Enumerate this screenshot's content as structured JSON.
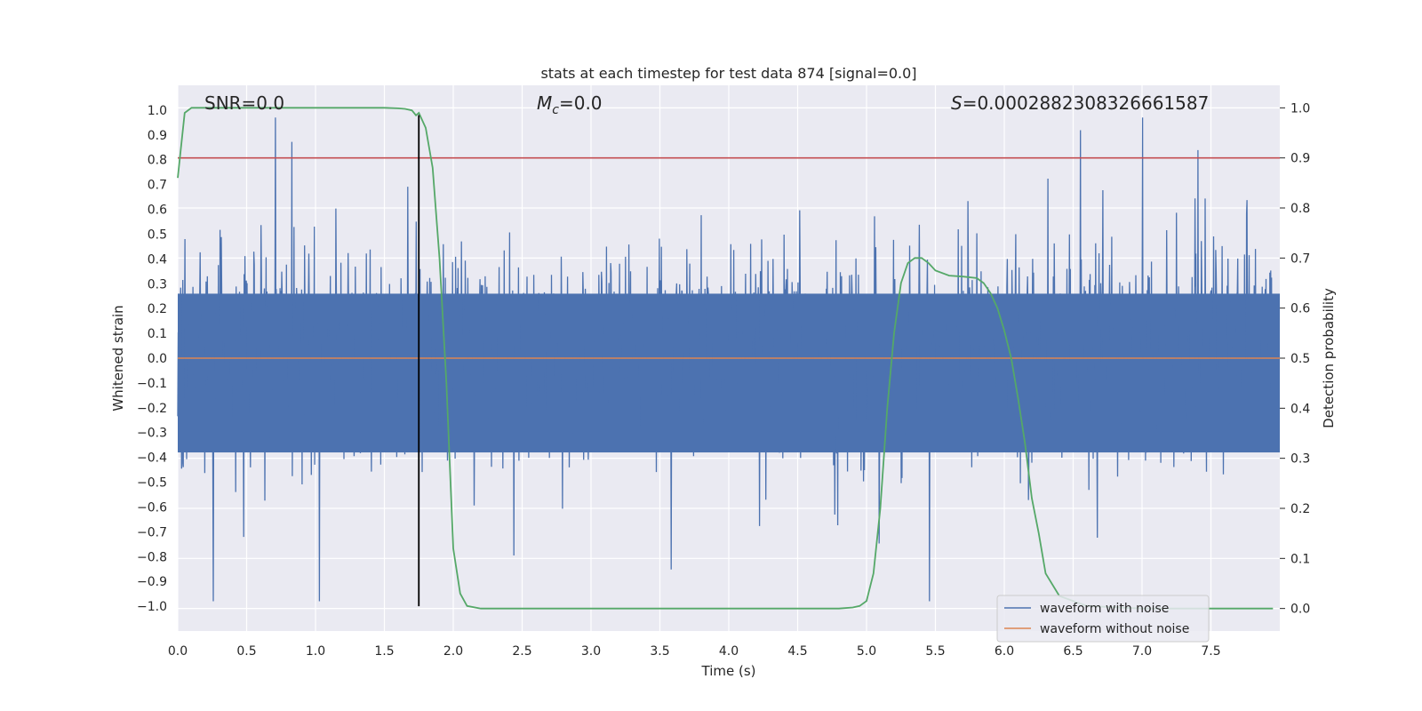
{
  "chart_data": {
    "type": "line",
    "title": "stats at each timestep for test data 874 [signal=0.0]",
    "xlabel": "Time (s)",
    "ylabel": "Whitened strain",
    "ylabel_right": "Detection probability",
    "xlim": [
      0.0,
      8.0
    ],
    "ylim": [
      -1.1,
      1.1
    ],
    "ylim_right": [
      -0.045,
      1.045
    ],
    "x_ticks": [
      "0.0",
      "0.5",
      "1.0",
      "1.5",
      "2.0",
      "2.5",
      "3.0",
      "3.5",
      "4.0",
      "4.5",
      "5.0",
      "5.5",
      "6.0",
      "6.5",
      "7.0",
      "7.5"
    ],
    "y_ticks": [
      "1.0",
      "0.9",
      "0.8",
      "0.7",
      "0.6",
      "0.5",
      "0.4",
      "0.3",
      "0.2",
      "0.1",
      "0.0",
      "−0.1",
      "−0.2",
      "−0.3",
      "−0.4",
      "−0.5",
      "−0.6",
      "−0.7",
      "−0.8",
      "−0.9",
      "−1.0"
    ],
    "y_right_ticks": [
      "1.0",
      "0.9",
      "0.8",
      "0.7",
      "0.6",
      "0.5",
      "0.4",
      "0.3",
      "0.2",
      "0.1",
      "0.0"
    ],
    "annotations": {
      "snr": "SNR=0.0",
      "mc_symbol": "M",
      "mc_subscript": "c",
      "mc_value": "=0.0",
      "s_symbol": "S",
      "s_value": "=0.0002882308326661587"
    },
    "series": [
      {
        "name": "waveform with noise",
        "color": "#4c72b0",
        "axis": "left",
        "description_range": [
          -1.0,
          0.97
        ]
      },
      {
        "name": "waveform without noise",
        "color": "#dd8452",
        "axis": "left",
        "values_constant": 0.0
      },
      {
        "name": "detection probability",
        "color": "#55a868",
        "axis": "right",
        "x": [
          0.0,
          0.05,
          0.1,
          0.15,
          0.3,
          0.6,
          1.0,
          1.3,
          1.5,
          1.6,
          1.65,
          1.7,
          1.73,
          1.75,
          1.8,
          1.85,
          1.9,
          1.95,
          2.0,
          2.05,
          2.1,
          2.2,
          2.5,
          3.0,
          3.5,
          4.0,
          4.5,
          4.8,
          4.9,
          4.95,
          5.0,
          5.05,
          5.1,
          5.15,
          5.2,
          5.25,
          5.3,
          5.35,
          5.4,
          5.45,
          5.5,
          5.6,
          5.7,
          5.8,
          5.85,
          5.9,
          5.95,
          6.0,
          6.05,
          6.1,
          6.15,
          6.2,
          6.25,
          6.3,
          6.4,
          6.6,
          7.0,
          7.5,
          7.95
        ],
        "values": [
          0.86,
          0.99,
          1.0,
          1.0,
          1.0,
          1.0,
          1.0,
          1.0,
          1.0,
          0.999,
          0.998,
          0.995,
          0.985,
          0.99,
          0.96,
          0.88,
          0.7,
          0.45,
          0.12,
          0.03,
          0.005,
          0.0,
          0.0,
          0.0,
          0.0,
          0.0,
          0.0,
          0.0,
          0.002,
          0.005,
          0.015,
          0.07,
          0.2,
          0.4,
          0.55,
          0.65,
          0.69,
          0.7,
          0.7,
          0.69,
          0.675,
          0.665,
          0.663,
          0.66,
          0.65,
          0.63,
          0.6,
          0.555,
          0.5,
          0.42,
          0.33,
          0.22,
          0.15,
          0.07,
          0.025,
          0.005,
          0.0,
          0.0,
          0.0
        ]
      }
    ],
    "threshold_line": {
      "value_right": 0.9,
      "color": "#c44e52"
    },
    "vertical_marker": {
      "x": 1.75,
      "ymin": -1.0,
      "ymax": 0.98,
      "color": "#000000"
    },
    "legend": {
      "position": "lower-right",
      "entries": [
        {
          "label": "waveform with noise",
          "color": "#4c72b0"
        },
        {
          "label": "waveform without noise",
          "color": "#dd8452"
        }
      ]
    },
    "grid": true
  }
}
